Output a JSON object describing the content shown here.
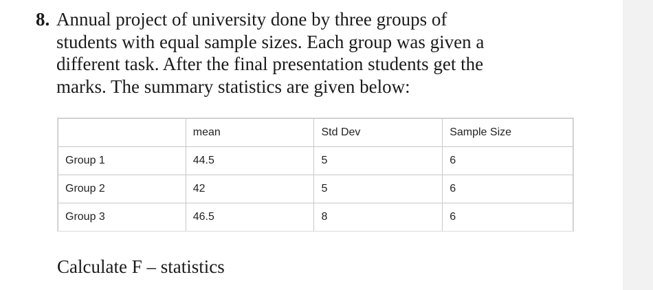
{
  "question": {
    "number": "8.",
    "lines": [
      "Annual project of university done by three groups of",
      "students with equal sample sizes. Each group was given a",
      "different task. After the final presentation students get the",
      "marks. The summary statistics are given below:"
    ]
  },
  "table": {
    "headers": [
      "",
      "mean",
      "Std Dev",
      "Sample Size"
    ],
    "rows": [
      [
        "Group 1",
        "44.5",
        "5",
        "6"
      ],
      [
        "Group 2",
        "42",
        "5",
        "6"
      ],
      [
        "Group 3",
        "46.5",
        "8",
        "6"
      ]
    ]
  },
  "instruction": "Calculate F – statistics"
}
